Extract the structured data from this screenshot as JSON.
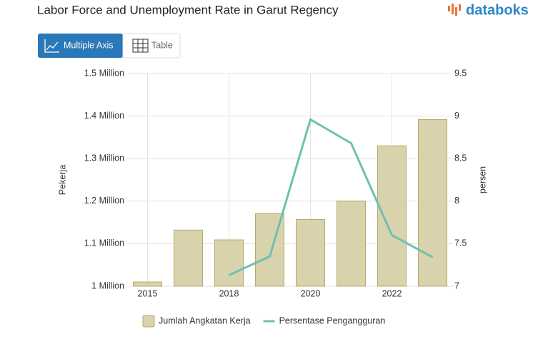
{
  "ui": {
    "logo": "databoks",
    "buttons": [
      "Multiple Axis",
      "Table"
    ]
  },
  "chart_data": {
    "type": "bar-line",
    "title": "Labor Force and Unemployment Rate in Garut Regency",
    "y_label": "Pekerja",
    "y2_label": "persen",
    "categories": [
      "2015",
      null,
      "2018",
      null,
      "2020",
      null,
      "2022",
      null
    ],
    "series": [
      {
        "name": "Jumlah Angkatan Kerja",
        "type": "bar",
        "color": "#d9d3ad",
        "values": [
          1010000,
          1132000,
          1109000,
          1171000,
          1157000,
          1200000,
          1330000,
          1392000
        ]
      },
      {
        "name": "Persentase Pengangguran",
        "type": "line",
        "axis": "y2",
        "color": "#6fc0b0",
        "values": [
          null,
          null,
          7.13,
          7.35,
          8.96,
          8.68,
          7.6,
          7.34
        ]
      }
    ],
    "ylim": [
      1000000,
      1500000
    ],
    "yticks": [
      {
        "value": 1000000,
        "label": "1 Million"
      },
      {
        "value": 1100000,
        "label": "1.1 Million"
      },
      {
        "value": 1200000,
        "label": "1.2 Million"
      },
      {
        "value": 1300000,
        "label": "1.3 Million"
      },
      {
        "value": 1400000,
        "label": "1.4 Million"
      },
      {
        "value": 1500000,
        "label": "1.5 Million"
      }
    ],
    "y2lim": [
      7,
      9.5
    ],
    "y2ticks": [
      7,
      7.5,
      8,
      8.5,
      9,
      9.5
    ],
    "grid": true,
    "legend": "bottom"
  }
}
